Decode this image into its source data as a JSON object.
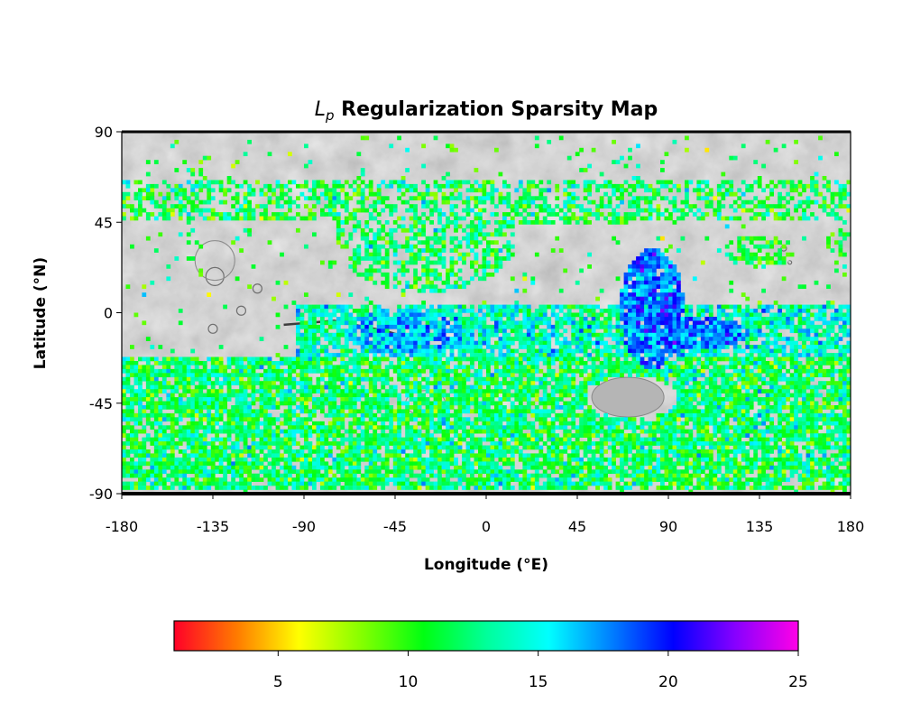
{
  "title": {
    "symbol_main": "L",
    "symbol_sub": "p",
    "text": " Regularization Sparsity Map"
  },
  "map": {
    "projection": "equirectangular",
    "basemap": "grayscale shaded relief",
    "xlabel": "Longitude (°E)",
    "ylabel": "Latitude (°N)",
    "xlim": [
      -180,
      180
    ],
    "ylim": [
      -90,
      90
    ],
    "xticks": [
      "-180",
      "-135",
      "-90",
      "-45",
      "0",
      "45",
      "90",
      "135",
      "180"
    ],
    "yticks": [
      "90",
      "45",
      "0",
      "-45",
      "-90"
    ]
  },
  "colorbar": {
    "colormap": "gist_rainbow_r",
    "range": [
      1,
      25
    ],
    "ticks": [
      "5",
      "10",
      "15",
      "20",
      "25"
    ],
    "stops": [
      "#ff0028",
      "#ff7a00",
      "#ffff00",
      "#85ff00",
      "#00ff12",
      "#00ff9a",
      "#00ffff",
      "#0080ff",
      "#0000ff",
      "#8800ff",
      "#ff00e6"
    ]
  }
}
